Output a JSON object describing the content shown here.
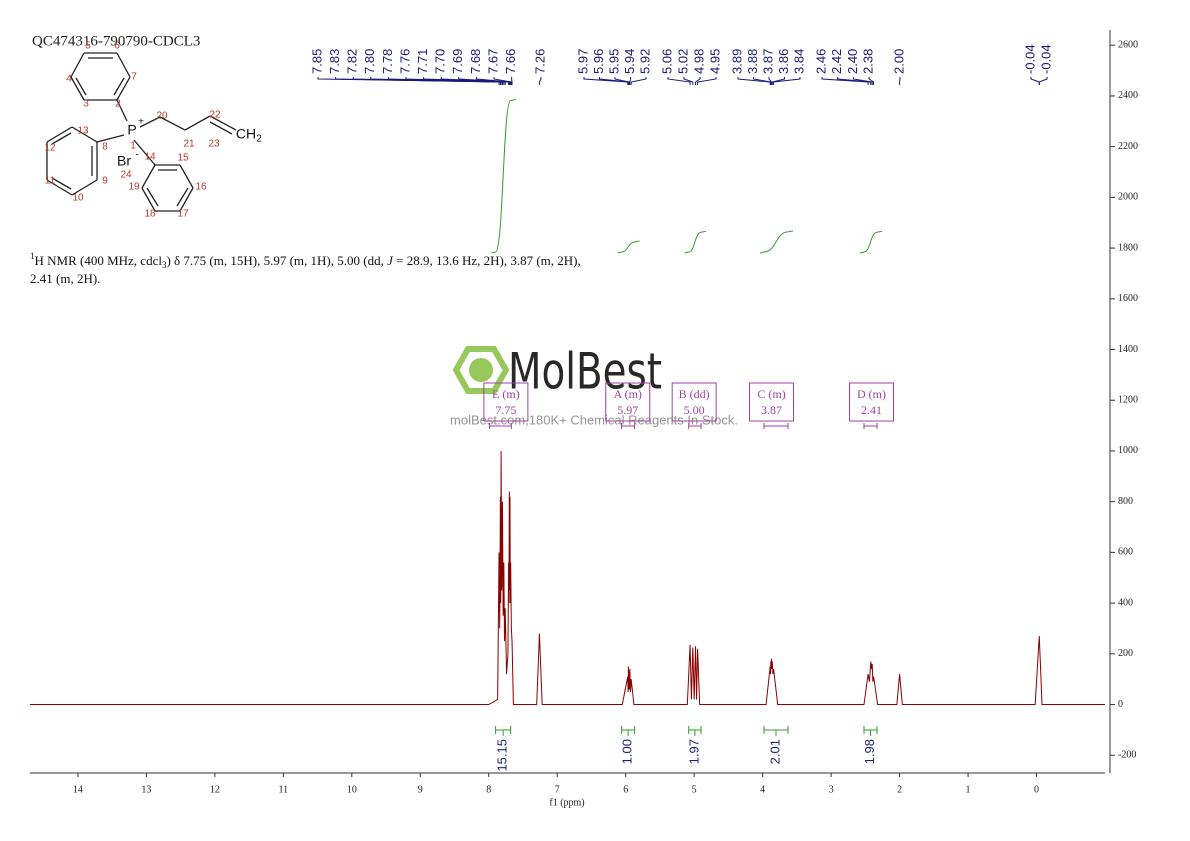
{
  "chart_data": {
    "type": "line",
    "title": "QC474316-790790-CDCL3",
    "x_label": "f1 (ppm)",
    "xlim": [
      14.7,
      -1.0
    ],
    "xticks": [
      14,
      13,
      12,
      11,
      10,
      9,
      8,
      7,
      6,
      5,
      4,
      3,
      2,
      1,
      0
    ],
    "ylim": [
      -270,
      2660
    ],
    "yticks": [
      2600,
      2400,
      2200,
      2000,
      1800,
      1600,
      1400,
      1200,
      1000,
      800,
      600,
      400,
      200,
      0,
      -200
    ],
    "series": [
      {
        "color": "#8b0000",
        "x": [
          14.7,
          8.0,
          7.87,
          7.85,
          7.84,
          7.83,
          7.825,
          7.82,
          7.81,
          7.8,
          7.79,
          7.78,
          7.77,
          7.76,
          7.74,
          7.72,
          7.71,
          7.705,
          7.7,
          7.695,
          7.69,
          7.685,
          7.68,
          7.67,
          7.66,
          7.64,
          7.3,
          7.26,
          7.22,
          6.05,
          5.97,
          5.965,
          5.96,
          5.955,
          5.95,
          5.945,
          5.94,
          5.93,
          5.92,
          5.88,
          5.1,
          5.06,
          5.04,
          5.02,
          5.0,
          4.98,
          4.965,
          4.95,
          4.92,
          3.95,
          3.89,
          3.885,
          3.88,
          3.875,
          3.87,
          3.865,
          3.86,
          3.85,
          3.84,
          3.78,
          2.52,
          2.46,
          2.44,
          2.42,
          2.41,
          2.4,
          2.39,
          2.38,
          2.32,
          2.04,
          2.0,
          1.96,
          0.02,
          -0.04,
          -0.08,
          -1.0
        ],
        "values": [
          0,
          0,
          20,
          600,
          300,
          820,
          400,
          1000,
          450,
          800,
          350,
          560,
          250,
          380,
          120,
          200,
          560,
          400,
          840,
          450,
          820,
          400,
          560,
          300,
          250,
          0,
          0,
          280,
          0,
          0,
          110,
          50,
          150,
          60,
          130,
          60,
          140,
          50,
          100,
          0,
          0,
          235,
          20,
          225,
          20,
          230,
          20,
          220,
          0,
          0,
          150,
          120,
          170,
          140,
          180,
          140,
          170,
          120,
          140,
          0,
          0,
          120,
          90,
          170,
          140,
          160,
          90,
          110,
          0,
          0,
          120,
          0,
          0,
          270,
          0,
          0
        ]
      }
    ],
    "peak_labels": [
      7.85,
      7.83,
      7.82,
      {
        "value": 7.8,
        "label": "7.80"
      },
      7.78,
      7.76,
      7.71,
      {
        "value": 7.7,
        "label": "7.70"
      },
      7.69,
      7.68,
      7.67,
      7.66,
      7.26,
      5.97,
      5.96,
      5.95,
      5.94,
      5.92,
      5.06,
      5.02,
      4.98,
      4.95,
      3.89,
      3.88,
      3.87,
      3.86,
      3.84,
      2.46,
      2.42,
      {
        "value": 2.4,
        "label": "2.40"
      },
      2.38,
      {
        "value": 2,
        "label": "2.00"
      },
      -0.04,
      -0.04
    ],
    "peak_label_color": "#1a1a7a",
    "multiplets": {
      "labels": [
        "E (m)",
        "A (m)",
        "B (dd)",
        "C (m)",
        "D (m)"
      ],
      "values": [
        7.75,
        5.97,
        5,
        3.87,
        2.41
      ],
      "value_labels": [
        "7.75",
        "5.97",
        "5.00",
        "3.87",
        "2.41"
      ],
      "ranges": [
        [
          7.99,
          7.67
        ],
        [
          6.06,
          5.87
        ],
        [
          5.08,
          4.9
        ],
        [
          3.98,
          3.63
        ],
        [
          2.52,
          2.33
        ]
      ],
      "color": "#a040a0"
    },
    "integrals": {
      "values": [
        15.15,
        1,
        1.97,
        2.01,
        1.98
      ],
      "value_labels": [
        "15.15",
        "1.00",
        "1.97",
        "2.01",
        "1.98"
      ],
      "ranges": [
        [
          7.9,
          7.68
        ],
        [
          6.06,
          5.87
        ],
        [
          5.08,
          4.9
        ],
        [
          3.98,
          3.63
        ],
        [
          2.52,
          2.33
        ]
      ],
      "color": "#2e9e2e",
      "label_color": "#1a237e"
    }
  },
  "description": [
    "1",
    "H NMR (400 MHz, cdcl",
    "3",
    ") δ 7.75 (m, 15H), 5.97 (m, 1H), 5.00 (dd, ",
    "J",
    " = 28.9, 13.6 Hz, 2H), 3.87 (m, 2H),",
    "2.41 (m, 2H)."
  ],
  "structure": {
    "labels": [
      "5",
      "6",
      "4",
      "7",
      "3",
      "2",
      "P",
      "+",
      "1",
      "20",
      "21",
      "22",
      "CH",
      "2",
      "23",
      "13",
      "12",
      "8",
      "11",
      "9",
      "10",
      "Br",
      "-",
      "14",
      "15",
      "24",
      "19",
      "16",
      "18",
      "17"
    ]
  },
  "watermark": {
    "brand": "MolBest",
    "tagline": "molBest.com,180K+ Chemical Reagents In Stock."
  }
}
